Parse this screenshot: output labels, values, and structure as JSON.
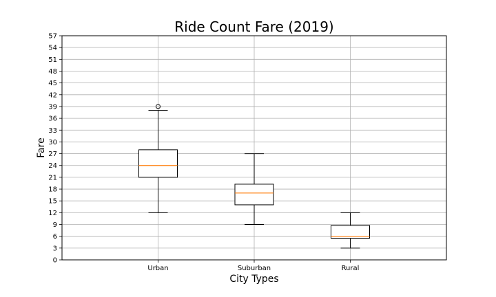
{
  "chart_data": {
    "type": "boxplot",
    "title": "Ride Count Fare (2019)",
    "xlabel": "City Types",
    "ylabel": "Fare",
    "ylim": [
      0,
      57
    ],
    "yticks": [
      0,
      3,
      6,
      9,
      12,
      15,
      18,
      21,
      24,
      27,
      30,
      33,
      36,
      39,
      42,
      45,
      48,
      51,
      54,
      57
    ],
    "grid": true,
    "categories": [
      "Urban",
      "Suburban",
      "Rural"
    ],
    "boxes": [
      {
        "category": "Urban",
        "whisker_low": 12,
        "q1": 21,
        "median": 24,
        "q3": 28,
        "whisker_high": 38,
        "outliers": [
          39
        ]
      },
      {
        "category": "Suburban",
        "whisker_low": 9,
        "q1": 14,
        "median": 17,
        "q3": 19.25,
        "whisker_high": 27,
        "outliers": []
      },
      {
        "category": "Rural",
        "whisker_low": 3,
        "q1": 5.5,
        "median": 6,
        "q3": 8.75,
        "whisker_high": 12,
        "outliers": []
      }
    ],
    "colors": {
      "box": "#000000",
      "median": "#ff7f0e",
      "grid": "#b0b0b0"
    }
  }
}
